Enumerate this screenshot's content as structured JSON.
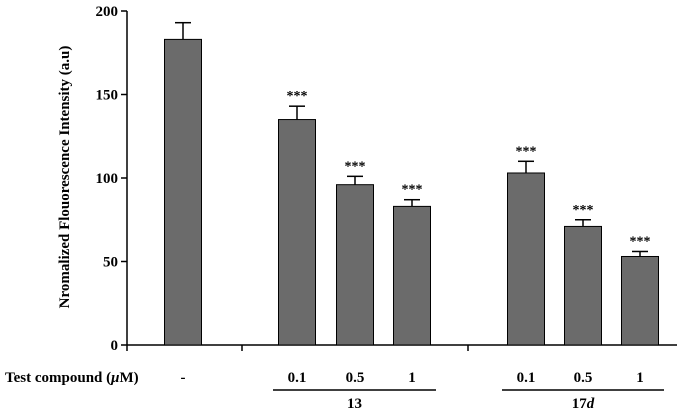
{
  "chart_data": {
    "type": "bar",
    "ylabel": "Nromalized Flouorescence Intensity (a.u)",
    "ylim": [
      0,
      200
    ],
    "yticks": [
      0,
      50,
      100,
      150,
      200
    ],
    "bar_color": "#6b6b6b",
    "row_label_prefix": "Test compound (",
    "row_label_unit": "μ",
    "row_label_suffix": "M)",
    "bars": [
      {
        "concentration": "-",
        "value": 183,
        "error": 10,
        "significance": ""
      },
      {
        "concentration": "0.1",
        "value": 135,
        "error": 8,
        "significance": "***"
      },
      {
        "concentration": "0.5",
        "value": 96,
        "error": 5,
        "significance": "***"
      },
      {
        "concentration": "1",
        "value": 83,
        "error": 4,
        "significance": "***"
      },
      {
        "concentration": "0.1",
        "value": 103,
        "error": 7,
        "significance": "***"
      },
      {
        "concentration": "0.5",
        "value": 71,
        "error": 4,
        "significance": "***"
      },
      {
        "concentration": "1",
        "value": 53,
        "error": 3,
        "significance": "***"
      }
    ],
    "groups": [
      {
        "label": "13",
        "italic_suffix": "",
        "bars": [
          1,
          2,
          3
        ]
      },
      {
        "label": "17",
        "italic_suffix": "d",
        "bars": [
          4,
          5,
          6
        ]
      }
    ]
  }
}
